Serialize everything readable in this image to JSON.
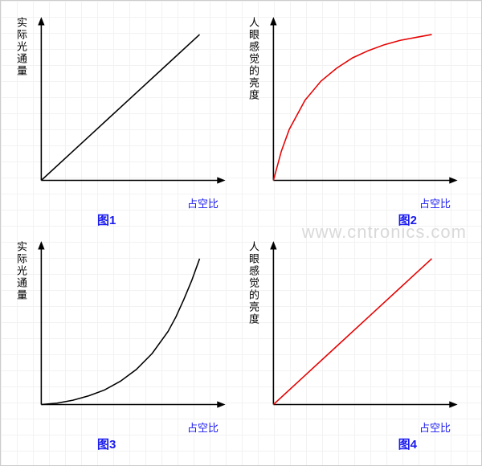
{
  "grid_color": "#f2f2f2",
  "background_color": "#ffffff",
  "axis_color": "#000000",
  "label_color": "#1a1af0",
  "watermark_text": "www.cntronics.com",
  "watermark_color": "#d9d9d9",
  "chart1": {
    "type": "line",
    "title": "图1",
    "ylabel": "实际光通量",
    "xlabel": "占空比",
    "line_color": "#000000",
    "line_width": 1.5,
    "points": [
      [
        0,
        0
      ],
      [
        20,
        20
      ],
      [
        40,
        40
      ],
      [
        60,
        60
      ],
      [
        80,
        80
      ],
      [
        100,
        100
      ]
    ]
  },
  "chart2": {
    "type": "line",
    "title": "图2",
    "ylabel": "人眼感觉的亮度",
    "xlabel": "占空比",
    "line_color": "#e60000",
    "line_width": 1.5,
    "points": [
      [
        0,
        0
      ],
      [
        5,
        20
      ],
      [
        10,
        35
      ],
      [
        20,
        55
      ],
      [
        30,
        68
      ],
      [
        40,
        77
      ],
      [
        50,
        84
      ],
      [
        60,
        89
      ],
      [
        70,
        93
      ],
      [
        80,
        96
      ],
      [
        90,
        98
      ],
      [
        100,
        100
      ]
    ]
  },
  "chart3": {
    "type": "line",
    "title": "图3",
    "ylabel": "实际光通量",
    "xlabel": "占空比",
    "line_color": "#000000",
    "line_width": 1.5,
    "points": [
      [
        0,
        0
      ],
      [
        10,
        1
      ],
      [
        20,
        3
      ],
      [
        30,
        6
      ],
      [
        40,
        10
      ],
      [
        50,
        16
      ],
      [
        60,
        24
      ],
      [
        70,
        35
      ],
      [
        80,
        50
      ],
      [
        85,
        60
      ],
      [
        90,
        72
      ],
      [
        95,
        85
      ],
      [
        100,
        100
      ]
    ]
  },
  "chart4": {
    "type": "line",
    "title": "图4",
    "ylabel": "人眼感觉的亮度",
    "xlabel": "占空比",
    "line_color": "#e60000",
    "line_width": 1.5,
    "points": [
      [
        0,
        0
      ],
      [
        20,
        20
      ],
      [
        40,
        40
      ],
      [
        60,
        60
      ],
      [
        80,
        80
      ],
      [
        100,
        100
      ]
    ]
  }
}
